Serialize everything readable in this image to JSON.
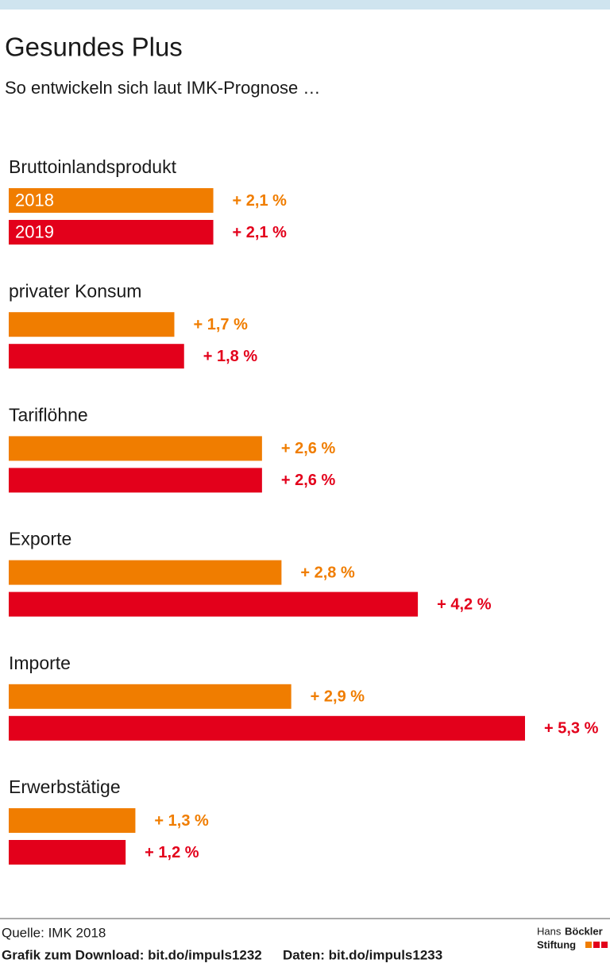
{
  "chart_data": {
    "type": "hbar",
    "title": "Gesundes Plus",
    "subtitle": "So entwickeln sich laut IMK-Prognose …",
    "categories": [
      "Bruttoinlandsprodukt",
      "privater Konsum",
      "Tariflöhne",
      "Exporte",
      "Importe",
      "Erwerbstätige"
    ],
    "series": [
      {
        "name": "2018",
        "color": "#f07d00",
        "values": [
          2.1,
          1.7,
          2.6,
          2.8,
          2.9,
          1.3
        ],
        "value_labels": [
          "+ 2,1 %",
          "+ 1,7 %",
          "+ 2,6 %",
          "+ 2,8 %",
          "+ 2,9 %",
          "+ 1,3 %"
        ]
      },
      {
        "name": "2019",
        "color": "#e3001b",
        "values": [
          2.1,
          1.8,
          2.6,
          4.2,
          5.3,
          1.2
        ],
        "value_labels": [
          "+ 2,1 %",
          "+ 1,8 %",
          "+ 2,6 %",
          "+ 4,2 %",
          "+ 5,3 %",
          "+ 1,2 %"
        ]
      }
    ]
  },
  "footer": {
    "source": "Quelle: IMK 2018",
    "download": "Grafik zum Download: bit.do/impuls1232",
    "data": "Daten: bit.do/impuls1233",
    "logo_line1_a": "Hans",
    "logo_line1_b": "Böckler",
    "logo_line2": "Stiftung"
  }
}
